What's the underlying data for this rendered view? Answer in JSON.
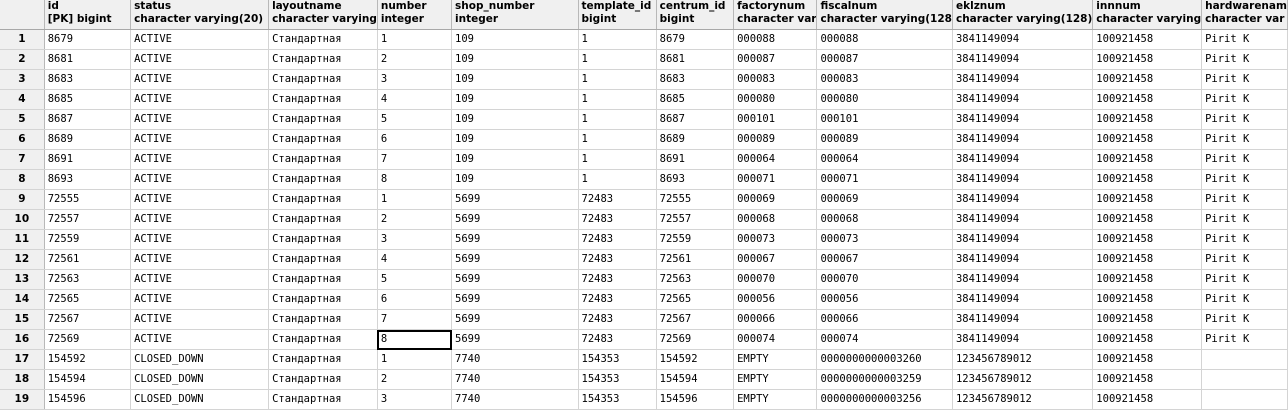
{
  "columns": [
    {
      "name": "id",
      "type": "[PK] bigint"
    },
    {
      "name": "status",
      "type": "character varying(20)"
    },
    {
      "name": "layoutname",
      "type": "character varying"
    },
    {
      "name": "number",
      "type": "integer"
    },
    {
      "name": "shop_number",
      "type": "integer"
    },
    {
      "name": "template_id",
      "type": "bigint"
    },
    {
      "name": "centrum_id",
      "type": "bigint"
    },
    {
      "name": "factorynum",
      "type": "character var"
    },
    {
      "name": "fiscalnum",
      "type": "character varying(128"
    },
    {
      "name": "eklznum",
      "type": "character varying(128)"
    },
    {
      "name": "innnum",
      "type": "character varying"
    },
    {
      "name": "hardwarenam",
      "type": "character var"
    }
  ],
  "rows": [
    {
      "n": "1",
      "cells": [
        "8679",
        "ACTIVE",
        "Стандартная",
        "1",
        "109",
        "1",
        "8679",
        "000088",
        "000088",
        "3841149094",
        "100921458",
        "Pirit K"
      ]
    },
    {
      "n": "2",
      "cells": [
        "8681",
        "ACTIVE",
        "Стандартная",
        "2",
        "109",
        "1",
        "8681",
        "000087",
        "000087",
        "3841149094",
        "100921458",
        "Pirit K"
      ]
    },
    {
      "n": "3",
      "cells": [
        "8683",
        "ACTIVE",
        "Стандартная",
        "3",
        "109",
        "1",
        "8683",
        "000083",
        "000083",
        "3841149094",
        "100921458",
        "Pirit K"
      ]
    },
    {
      "n": "4",
      "cells": [
        "8685",
        "ACTIVE",
        "Стандартная",
        "4",
        "109",
        "1",
        "8685",
        "000080",
        "000080",
        "3841149094",
        "100921458",
        "Pirit K"
      ]
    },
    {
      "n": "5",
      "cells": [
        "8687",
        "ACTIVE",
        "Стандартная",
        "5",
        "109",
        "1",
        "8687",
        "000101",
        "000101",
        "3841149094",
        "100921458",
        "Pirit K"
      ]
    },
    {
      "n": "6",
      "cells": [
        "8689",
        "ACTIVE",
        "Стандартная",
        "6",
        "109",
        "1",
        "8689",
        "000089",
        "000089",
        "3841149094",
        "100921458",
        "Pirit K"
      ]
    },
    {
      "n": "7",
      "cells": [
        "8691",
        "ACTIVE",
        "Стандартная",
        "7",
        "109",
        "1",
        "8691",
        "000064",
        "000064",
        "3841149094",
        "100921458",
        "Pirit K"
      ]
    },
    {
      "n": "8",
      "cells": [
        "8693",
        "ACTIVE",
        "Стандартная",
        "8",
        "109",
        "1",
        "8693",
        "000071",
        "000071",
        "3841149094",
        "100921458",
        "Pirit K"
      ]
    },
    {
      "n": "9",
      "cells": [
        "72555",
        "ACTIVE",
        "Стандартная",
        "1",
        "5699",
        "72483",
        "72555",
        "000069",
        "000069",
        "3841149094",
        "100921458",
        "Pirit K"
      ]
    },
    {
      "n": "10",
      "cells": [
        "72557",
        "ACTIVE",
        "Стандартная",
        "2",
        "5699",
        "72483",
        "72557",
        "000068",
        "000068",
        "3841149094",
        "100921458",
        "Pirit K"
      ]
    },
    {
      "n": "11",
      "cells": [
        "72559",
        "ACTIVE",
        "Стандартная",
        "3",
        "5699",
        "72483",
        "72559",
        "000073",
        "000073",
        "3841149094",
        "100921458",
        "Pirit K"
      ]
    },
    {
      "n": "12",
      "cells": [
        "72561",
        "ACTIVE",
        "Стандартная",
        "4",
        "5699",
        "72483",
        "72561",
        "000067",
        "000067",
        "3841149094",
        "100921458",
        "Pirit K"
      ]
    },
    {
      "n": "13",
      "cells": [
        "72563",
        "ACTIVE",
        "Стандартная",
        "5",
        "5699",
        "72483",
        "72563",
        "000070",
        "000070",
        "3841149094",
        "100921458",
        "Pirit K"
      ]
    },
    {
      "n": "14",
      "cells": [
        "72565",
        "ACTIVE",
        "Стандартная",
        "6",
        "5699",
        "72483",
        "72565",
        "000056",
        "000056",
        "3841149094",
        "100921458",
        "Pirit K"
      ]
    },
    {
      "n": "15",
      "cells": [
        "72567",
        "ACTIVE",
        "Стандартная",
        "7",
        "5699",
        "72483",
        "72567",
        "000066",
        "000066",
        "3841149094",
        "100921458",
        "Pirit K"
      ]
    },
    {
      "n": "16",
      "cells": [
        "72569",
        "ACTIVE",
        "Стандартная",
        "8",
        "5699",
        "72483",
        "72569",
        "000074",
        "000074",
        "3841149094",
        "100921458",
        "Pirit K"
      ]
    },
    {
      "n": "17",
      "cells": [
        "154592",
        "CLOSED_DOWN",
        "Стандартная",
        "1",
        "7740",
        "154353",
        "154592",
        "EMPTY",
        "0000000000003260",
        "123456789012",
        "100921458",
        ""
      ]
    },
    {
      "n": "18",
      "cells": [
        "154594",
        "CLOSED_DOWN",
        "Стандартная",
        "2",
        "7740",
        "154353",
        "154594",
        "EMPTY",
        "0000000000003259",
        "123456789012",
        "100921458",
        ""
      ]
    },
    {
      "n": "19",
      "cells": [
        "154596",
        "CLOSED_DOWN",
        "Стандартная",
        "3",
        "7740",
        "154353",
        "154596",
        "EMPTY",
        "0000000000003256",
        "123456789012",
        "100921458",
        ""
      ]
    }
  ],
  "selected_cell": {
    "row": 15,
    "col": 3
  }
}
